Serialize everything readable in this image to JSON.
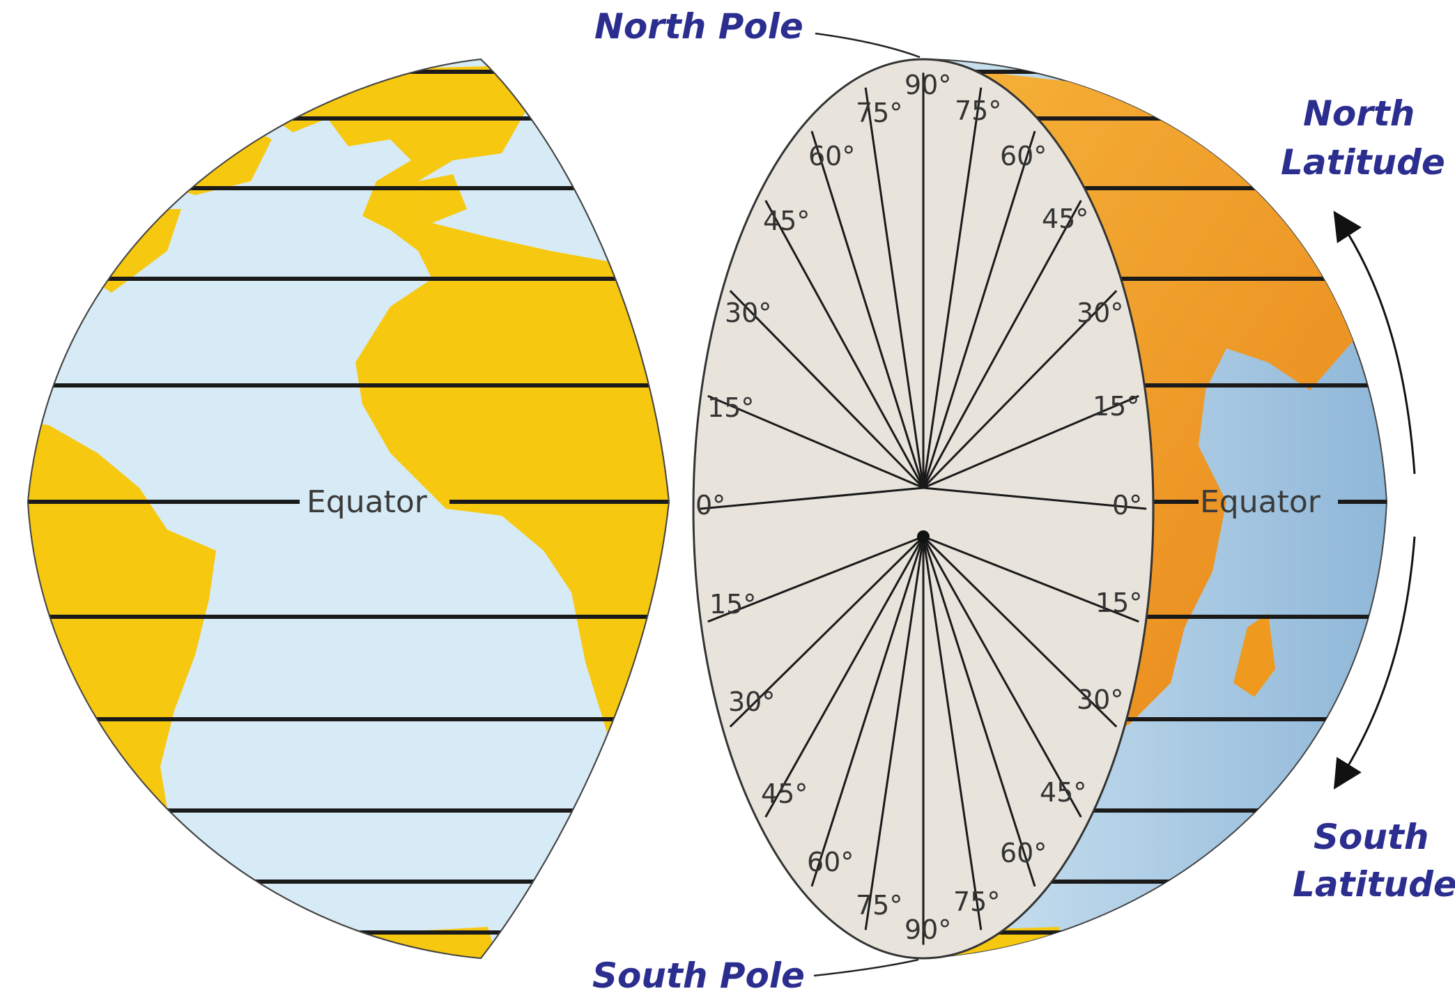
{
  "labels": {
    "north_pole": "North Pole",
    "south_pole": "South Pole",
    "north_latitude_line1": "North",
    "north_latitude_line2": "Latitude",
    "south_latitude_line1": "South",
    "south_latitude_line2": "Latitude",
    "equator_left": "Equator",
    "equator_right": "Equator"
  },
  "degrees": {
    "n90": "90°",
    "n75": "75°",
    "n60": "60°",
    "n45": "45°",
    "n30": "30°",
    "n15": "15°",
    "zero": "0°",
    "s15": "15°",
    "s30": "30°",
    "s45": "45°",
    "s60": "60°",
    "s75": "75°",
    "s90": "90°"
  },
  "colors": {
    "ocean": "#d6ebf6",
    "land": "#f7c810",
    "land_orange": "#ef9a1e",
    "cut_face": "#e8e4dc",
    "line": "#1a1a1a",
    "callout_text": "#2b2e8f"
  }
}
